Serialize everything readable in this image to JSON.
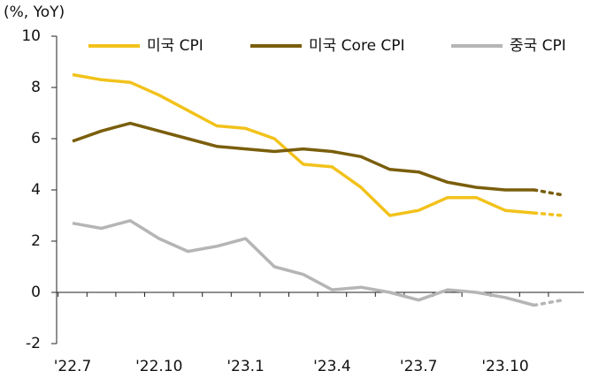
{
  "chart_data": {
    "type": "line",
    "y_unit_label": "(%, YoY)",
    "categories": [
      "'22.7",
      null,
      null,
      "'22.10",
      null,
      null,
      "'23.1",
      null,
      null,
      "'23.4",
      null,
      null,
      "'23.7",
      null,
      null,
      "'23.10",
      null,
      null
    ],
    "series": [
      {
        "name": "미국  CPI",
        "color": "#f2c21b",
        "dash_from": 16,
        "values": [
          8.5,
          8.3,
          8.2,
          7.7,
          7.1,
          6.5,
          6.4,
          6.0,
          5.0,
          4.9,
          4.1,
          3.0,
          3.2,
          3.7,
          3.7,
          3.2,
          3.1,
          3.0
        ]
      },
      {
        "name": "미국  Core CPI",
        "color": "#7a5e0c",
        "dash_from": 16,
        "values": [
          5.9,
          6.3,
          6.6,
          6.3,
          6.0,
          5.7,
          5.6,
          5.5,
          5.6,
          5.5,
          5.3,
          4.8,
          4.7,
          4.3,
          4.1,
          4.0,
          4.0,
          3.8
        ]
      },
      {
        "name": "중국 CPI",
        "color": "#b5b5b5",
        "dash_from": 16,
        "values": [
          2.7,
          2.5,
          2.8,
          2.1,
          1.6,
          1.8,
          2.1,
          1.0,
          0.7,
          0.1,
          0.2,
          0.0,
          -0.3,
          0.1,
          0.0,
          -0.2,
          -0.5,
          -0.3
        ]
      }
    ],
    "ylim": [
      -2,
      10
    ],
    "yticks": [
      -2,
      0,
      2,
      4,
      6,
      8,
      10
    ],
    "legend": "top"
  }
}
